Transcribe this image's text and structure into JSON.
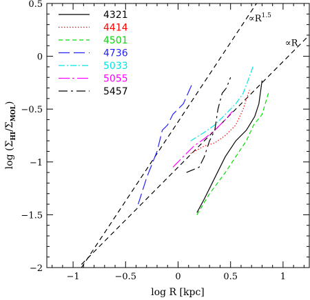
{
  "chart_data": {
    "type": "line",
    "xlabel": "log R [kpc]",
    "ylabel": "log (Σ_HI/Σ_MOL)",
    "ylabel_parts": {
      "pre": "log (",
      "sigma1": "Σ",
      "sub1": "HI",
      "slash": "/",
      "sigma2": "Σ",
      "sub2": "MOL",
      "post": ")"
    },
    "xlim": [
      -1.25,
      1.25
    ],
    "ylim": [
      -2,
      0.5
    ],
    "xticks": [
      -1,
      -0.5,
      0,
      0.5,
      1
    ],
    "xtick_labels": [
      "−1",
      "−0.5",
      "0",
      "0.5",
      "1"
    ],
    "yticks": [
      -2,
      -1.5,
      -1,
      -0.5,
      0,
      0.5
    ],
    "ytick_labels": [
      "−2",
      "−1.5",
      "−1",
      "−0.5",
      "0",
      "0.5"
    ],
    "grid": false,
    "legend_position": "top-left",
    "series": [
      {
        "name": "4321",
        "color": "#000000",
        "dash": "solid",
        "x": [
          0.18,
          0.25,
          0.35,
          0.45,
          0.55,
          0.65,
          0.73,
          0.77,
          0.8
        ],
        "y": [
          -1.48,
          -1.35,
          -1.15,
          -0.95,
          -0.8,
          -0.7,
          -0.57,
          -0.45,
          -0.23
        ]
      },
      {
        "name": "4414",
        "color": "#ff0000",
        "dash": "dotted",
        "x": [
          0.12,
          0.25,
          0.35,
          0.45,
          0.55,
          0.62,
          0.68
        ],
        "y": [
          -0.92,
          -0.85,
          -0.82,
          -0.75,
          -0.65,
          -0.5,
          -0.32
        ]
      },
      {
        "name": "4501",
        "color": "#00dd00",
        "dash": "dashed-short",
        "x": [
          0.18,
          0.3,
          0.45,
          0.55,
          0.65,
          0.72,
          0.8,
          0.86
        ],
        "y": [
          -1.5,
          -1.3,
          -1.1,
          -0.95,
          -0.8,
          -0.65,
          -0.55,
          -0.35
        ]
      },
      {
        "name": "4736",
        "color": "#2222ff",
        "dash": "dashed-long",
        "x": [
          -0.38,
          -0.3,
          -0.2,
          -0.15,
          -0.1,
          -0.05,
          0.05,
          0.13
        ],
        "y": [
          -1.4,
          -1.15,
          -0.9,
          -0.7,
          -0.65,
          -0.55,
          -0.45,
          -0.27
        ]
      },
      {
        "name": "5033",
        "color": "#00e5e5",
        "dash": "dash-dot",
        "x": [
          0.12,
          0.25,
          0.35,
          0.45,
          0.55,
          0.62,
          0.67,
          0.72
        ],
        "y": [
          -0.8,
          -0.72,
          -0.65,
          -0.55,
          -0.45,
          -0.35,
          -0.22,
          -0.08
        ]
      },
      {
        "name": "5055",
        "color": "#ff00ff",
        "dash": "dash-dot-long",
        "x": [
          -0.05,
          0.05,
          0.15,
          0.25,
          0.35,
          0.45,
          0.52
        ],
        "y": [
          -1.05,
          -0.95,
          -0.85,
          -0.78,
          -0.7,
          -0.6,
          -0.52
        ]
      },
      {
        "name": "5457",
        "color": "#000000",
        "dash": "dash-dot-long2",
        "x": [
          0.08,
          0.2,
          0.25,
          0.3,
          0.35,
          0.38,
          0.42,
          0.46,
          0.5
        ],
        "y": [
          -1.1,
          -1.05,
          -0.95,
          -0.8,
          -0.7,
          -0.5,
          -0.35,
          -0.3,
          -0.2
        ]
      }
    ],
    "reference_lines": [
      {
        "label": "R",
        "label_prefix": "∝",
        "exponent": "",
        "slope": 1.0,
        "intercept": -1.05,
        "x_start": -0.92,
        "x_end": 1.25
      },
      {
        "label": "R",
        "label_prefix": "∝",
        "exponent": "1.5",
        "slope": 1.5,
        "intercept": -0.62,
        "x_start": -0.92,
        "x_end": 0.92
      }
    ]
  }
}
